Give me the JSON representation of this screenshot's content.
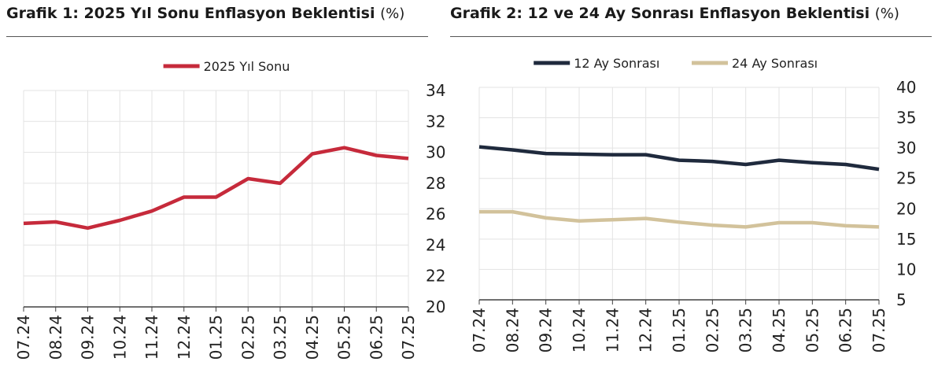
{
  "panels": [
    {
      "title": "Grafik 1: 2025 Yıl Sonu Enflasyon Beklentisi",
      "unit": "(%)"
    },
    {
      "title": "Grafik 2: 12 ve 24 Ay Sonrası Enflasyon Beklentisi",
      "unit": "(%)"
    }
  ],
  "colors": {
    "series_red": "#c62a3b",
    "series_navy": "#1f2a3d",
    "series_beige": "#d2c29b",
    "grid": "#e3e3e3",
    "axis": "#404040"
  },
  "chart_data": [
    {
      "type": "line",
      "x": [
        "07.24",
        "08.24",
        "09.24",
        "10.24",
        "11.24",
        "12.24",
        "01.25",
        "02.25",
        "03.25",
        "04.25",
        "05.25",
        "06.25",
        "07.25"
      ],
      "series": [
        {
          "name": "2025 Yıl Sonu",
          "color": "#c62a3b",
          "values": [
            25.4,
            25.5,
            25.1,
            25.6,
            26.2,
            27.1,
            27.1,
            28.3,
            28.0,
            29.9,
            30.3,
            29.8,
            29.6
          ]
        }
      ],
      "ylim": [
        20,
        34
      ],
      "yticks": [
        20,
        22,
        24,
        26,
        28,
        30,
        32,
        34
      ],
      "y_axis_side": "right",
      "legend": "top-center",
      "grid": true
    },
    {
      "type": "line",
      "x": [
        "07.24",
        "08.24",
        "09.24",
        "10.24",
        "11.24",
        "12.24",
        "01.25",
        "02.25",
        "03.25",
        "04.25",
        "05.25",
        "06.25",
        "07.25"
      ],
      "series": [
        {
          "name": "12 Ay Sonrası",
          "color": "#1f2a3d",
          "values": [
            30.2,
            29.7,
            29.1,
            29.0,
            28.9,
            28.9,
            28.0,
            27.8,
            27.3,
            28.0,
            27.6,
            27.3,
            26.5
          ]
        },
        {
          "name": "24 Ay Sonrası",
          "color": "#d2c29b",
          "values": [
            19.5,
            19.5,
            18.5,
            18.0,
            18.2,
            18.4,
            17.8,
            17.3,
            17.0,
            17.7,
            17.7,
            17.2,
            17.0
          ]
        }
      ],
      "ylim": [
        5,
        40
      ],
      "yticks": [
        5,
        10,
        15,
        20,
        25,
        30,
        35,
        40
      ],
      "y_axis_side": "right",
      "legend": "top-center",
      "grid": true
    }
  ]
}
